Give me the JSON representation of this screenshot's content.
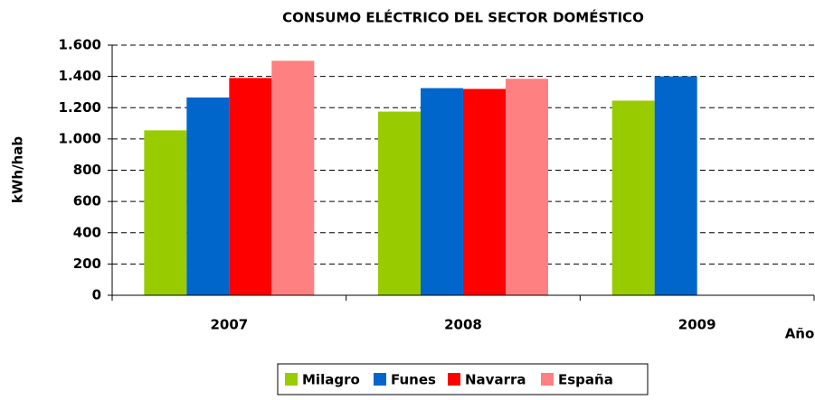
{
  "chart_data": {
    "type": "bar",
    "title": "CONSUMO ELÉCTRICO DEL SECTOR DOMÉSTICO",
    "x_label": "Año",
    "y_label": "kWh/hab",
    "categories": [
      "2007",
      "2008",
      "2009"
    ],
    "series": [
      {
        "name": "Milagro",
        "color": "#99cc00",
        "values": [
          1055,
          1175,
          1245
        ]
      },
      {
        "name": "Funes",
        "color": "#0066cc",
        "values": [
          1265,
          1325,
          1400
        ]
      },
      {
        "name": "Navarra",
        "color": "#ff0000",
        "values": [
          1390,
          1320,
          null
        ]
      },
      {
        "name": "España",
        "color": "#ff8080",
        "values": [
          1500,
          1385,
          null
        ]
      }
    ],
    "ylim": [
      0,
      1600
    ],
    "yticks": [
      0,
      200,
      400,
      600,
      800,
      {
        "value": 1000,
        "label": "1.000"
      },
      {
        "value": 1200,
        "label": "1.200"
      },
      {
        "value": 1400,
        "label": "1.400"
      },
      {
        "value": 1600,
        "label": "1.600"
      }
    ],
    "grid": true,
    "legend": "bottom"
  }
}
